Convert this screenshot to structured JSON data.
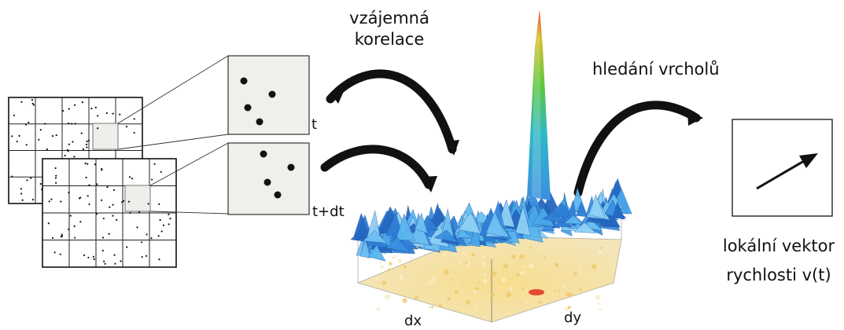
{
  "labels": {
    "cross_correlation": [
      "vzájemná",
      "korelace"
    ],
    "peak_search": "hledání vrcholů",
    "frame_t": "t",
    "frame_t_dt": "t+dt",
    "local_vector": [
      "lokální vektor",
      "rychlosti v(t)"
    ],
    "axis_dx": "dx",
    "axis_dy": "dy"
  },
  "colors": {
    "ink": "#111111",
    "window_fill": "#f0efec",
    "surface_blue": "#3a8fe0",
    "surface_light": "#8fd0f5",
    "floor_yellow": "#f5d98a",
    "peak_red": "#e0301e",
    "peak_green": "#3fbf4a"
  }
}
